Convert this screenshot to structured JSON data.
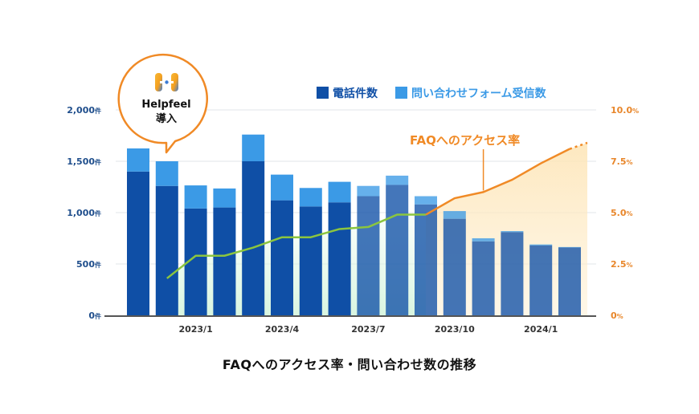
{
  "chart_data": {
    "type": "bar",
    "title": "FAQへのアクセス率・問い合わせ数の推移",
    "categories": [
      "2022/11",
      "2022/12",
      "2023/1",
      "2023/2",
      "2023/3",
      "2023/4",
      "2023/5",
      "2023/6",
      "2023/7",
      "2023/8",
      "2023/9",
      "2023/10",
      "2023/11",
      "2023/12",
      "2024/1",
      "2024/2"
    ],
    "x_tick_labels": [
      {
        "category": "2023/1",
        "label": "2023/1"
      },
      {
        "category": "2023/4",
        "label": "2023/4"
      },
      {
        "category": "2023/7",
        "label": "2023/7"
      },
      {
        "category": "2023/10",
        "label": "2023/10"
      },
      {
        "category": "2024/1",
        "label": "2024/1"
      }
    ],
    "series": [
      {
        "name": "電話件数",
        "color": "#0f4fa6",
        "values": [
          1400,
          1260,
          1040,
          1050,
          1500,
          1120,
          1060,
          1100,
          1160,
          1270,
          1080,
          940,
          720,
          810,
          680,
          660
        ]
      },
      {
        "name": "問い合わせフォーム受信数",
        "color": "#3b9ae6",
        "values": [
          225,
          240,
          225,
          185,
          260,
          250,
          180,
          200,
          100,
          90,
          80,
          75,
          30,
          10,
          10,
          5
        ]
      }
    ],
    "line": {
      "name": "FAQへのアクセス率",
      "color": "#f08a26",
      "x_start_index": 1,
      "values": [
        1.8,
        2.9,
        2.9,
        3.3,
        3.8,
        3.8,
        4.2,
        4.3,
        4.9,
        4.9,
        5.7,
        6.0,
        6.6,
        7.4,
        8.1
      ],
      "projected_last": 8.4
    },
    "left_axis": {
      "range": [
        0,
        2000
      ],
      "ticks": [
        0,
        500,
        1000,
        1500,
        2000
      ],
      "tick_labels": [
        "0",
        "500",
        "1,000",
        "1,500",
        "2,000"
      ],
      "unit": "件"
    },
    "right_axis": {
      "range": [
        0,
        10.0
      ],
      "ticks": [
        0,
        2.5,
        5.0,
        7.5,
        10.0
      ],
      "tick_labels": [
        "0",
        "2.5",
        "5.0",
        "7.5",
        "10.0"
      ],
      "unit": "%"
    }
  },
  "legend": {
    "phone_label": "電話件数",
    "form_label": "問い合わせフォーム受信数"
  },
  "annotation": {
    "faq_rate_label": "FAQへのアクセス率"
  },
  "callout": {
    "brand": "Helpfeel",
    "text": "導入"
  },
  "caption": "FAQへのアクセス率・問い合わせ数の推移",
  "colors": {
    "phone": "#0f4fa6",
    "form": "#3b9ae6",
    "faq_line": "#f08a26",
    "left_axis_text": "#1f4e8c",
    "right_axis_text": "#e8862a"
  }
}
